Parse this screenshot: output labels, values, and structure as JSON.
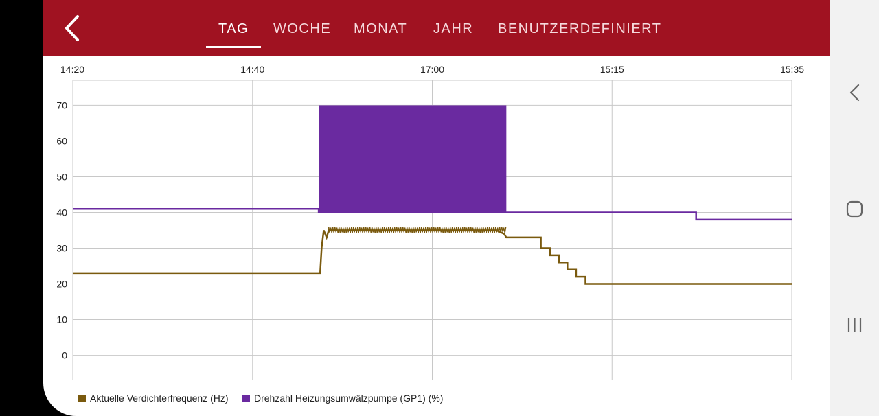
{
  "header": {
    "tabs": [
      {
        "id": "tag",
        "label": "TAG",
        "active": true
      },
      {
        "id": "woche",
        "label": "WOCHE",
        "active": false
      },
      {
        "id": "monat",
        "label": "MONAT",
        "active": false
      },
      {
        "id": "jahr",
        "label": "JAHR",
        "active": false
      },
      {
        "id": "benutzerdefiniert",
        "label": "BENUTZERDEFINIERT",
        "active": false
      }
    ],
    "back_icon": "chevron-left-icon"
  },
  "colors": {
    "header_bg": "#a01221",
    "series_frequency": "#7a5a0e",
    "series_pump": "#6a2aa0"
  },
  "legend": {
    "frequency_label": "Aktuelle Verdichterfrequenz (Hz)",
    "pump_label": "Drehzahl Heizungsumwälzpumpe (GP1) (%)"
  },
  "system_nav": {
    "back_icon": "chevron-left-icon",
    "home_icon": "rounded-square-icon",
    "recents_icon": "three-bars-icon"
  },
  "chart_data": {
    "type": "line",
    "x_tick_labels": [
      "14:20",
      "14:40",
      "17:00",
      "15:15",
      "15:35"
    ],
    "x_domain": [
      0,
      100
    ],
    "y_ticks": [
      0,
      10,
      20,
      30,
      40,
      50,
      60,
      70
    ],
    "ylim": [
      -7,
      77
    ],
    "grid": true,
    "legend_position": "bottom-left",
    "series": [
      {
        "name": "Drehzahl Heizungsumwälzpumpe (GP1) (%)",
        "color": "#6a2aa0",
        "points": [
          [
            0,
            41
          ],
          [
            34.2,
            41
          ],
          [
            34.2,
            40
          ],
          [
            60.3,
            40
          ],
          [
            86.7,
            40
          ],
          [
            86.7,
            38
          ],
          [
            100,
            38
          ]
        ],
        "oscillating_segment": {
          "x_start": 34.2,
          "x_end": 60.3,
          "y_low": 40,
          "y_high": 70
        }
      },
      {
        "name": "Aktuelle Verdichterfrequenz (Hz)",
        "color": "#7a5a0e",
        "points": [
          [
            0,
            23
          ],
          [
            34.4,
            23
          ],
          [
            34.6,
            30
          ],
          [
            34.9,
            35
          ],
          [
            35.3,
            33
          ],
          [
            35.6,
            35
          ],
          [
            58.9,
            35
          ],
          [
            60.0,
            34
          ],
          [
            60.3,
            33
          ],
          [
            65.1,
            33
          ],
          [
            65.1,
            30
          ],
          [
            66.4,
            30
          ],
          [
            66.4,
            28
          ],
          [
            67.6,
            28
          ],
          [
            67.6,
            26
          ],
          [
            68.8,
            26
          ],
          [
            68.8,
            24
          ],
          [
            70.0,
            24
          ],
          [
            70.0,
            22
          ],
          [
            71.3,
            22
          ],
          [
            71.3,
            20
          ],
          [
            100,
            20
          ]
        ],
        "noise_segment": {
          "x_start": 35.6,
          "x_end": 60.3,
          "y_low": 34.2,
          "y_high": 36
        }
      }
    ]
  }
}
